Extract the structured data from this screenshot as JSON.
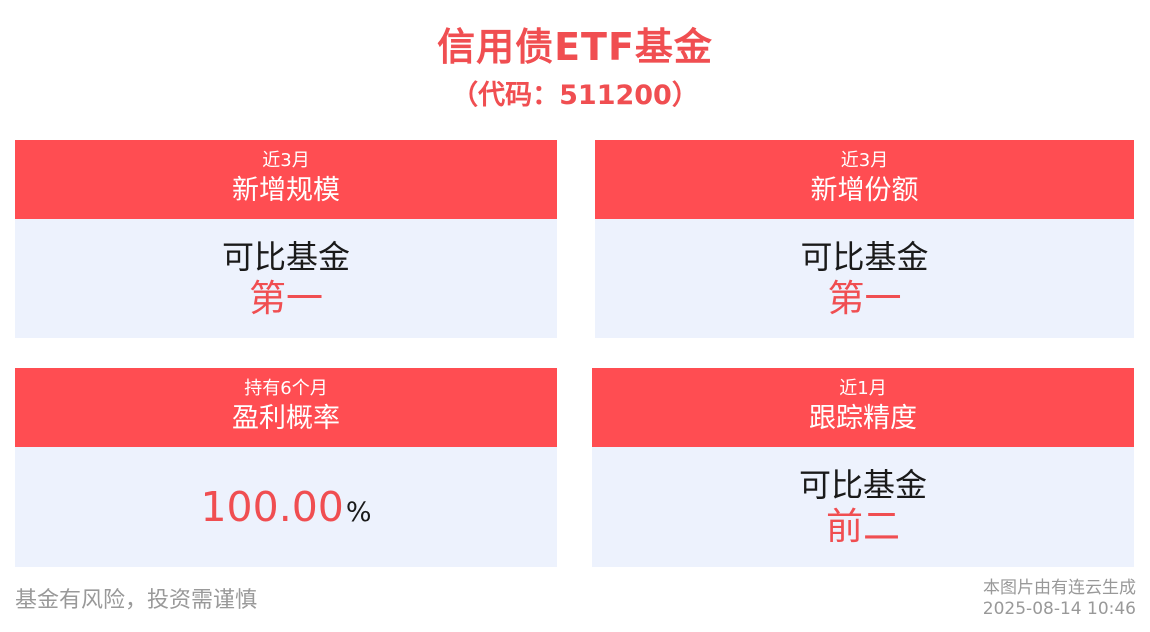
{
  "header": {
    "title": "信用债ETF基金",
    "subtitle": "（代码：511200）"
  },
  "cards": [
    {
      "head_small": "近3月",
      "head_big": "新增规模",
      "body_line1": "可比基金",
      "body_line2": "第一"
    },
    {
      "head_small": "近3月",
      "head_big": "新增份额",
      "body_line1": "可比基金",
      "body_line2": "第一"
    },
    {
      "head_small": "持有6个月",
      "head_big": "盈利概率",
      "value": "100.00",
      "unit": "%"
    },
    {
      "head_small": "近1月",
      "head_big": "跟踪精度",
      "body_line1": "可比基金",
      "body_line2": "前二"
    }
  ],
  "footer": {
    "disclaimer": "基金有风险，投资需谨慎",
    "generated_by": "本图片由有连云生成",
    "timestamp": "2025-08-14 10:46"
  },
  "colors": {
    "accent": "#ff4d52",
    "title_red": "#f04e51",
    "body_bg": "#edf2fd",
    "footer_gray": "#999999"
  }
}
